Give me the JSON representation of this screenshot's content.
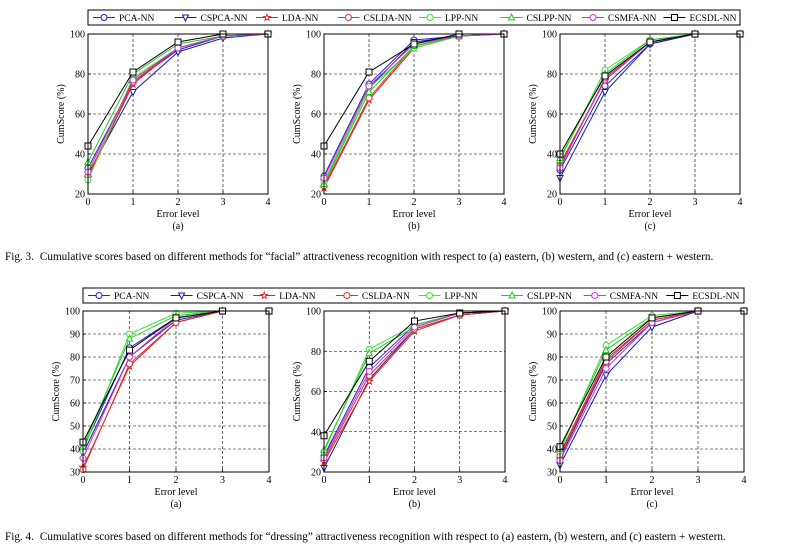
{
  "legend": [
    "PCA-NN",
    "CSPCA-NN",
    "LDA-NN",
    "CSLDA-NN",
    "LPP-NN",
    "CSLPP-NN",
    "CSMFA-NN",
    "ECSDL-NN"
  ],
  "series_colors": [
    "#2222cc",
    "#1a1aa8",
    "#e02020",
    "#d83030",
    "#44dd44",
    "#22cc22",
    "#cc33cc",
    "#000000"
  ],
  "series_markers": [
    "circle",
    "triangle-down",
    "star",
    "circle",
    "circle",
    "triangle-up",
    "circle",
    "square"
  ],
  "figures": [
    {
      "id": "fig3",
      "caption_label": "Fig. 3.",
      "caption_text": "Cumulative scores based on different methods for “facial” attractiveness recognition with respect to (a) eastern, (b) western, and (c) eastern + western."
    },
    {
      "id": "fig4",
      "caption_label": "Fig. 4.",
      "caption_text": "Cumulative scores based on different methods for “dressing” attractiveness recognition with respect to (a) eastern, (b) western, and (c) eastern + western."
    }
  ],
  "chart_data": [
    {
      "figure": "Fig. 3",
      "panel": "(a)",
      "type": "line",
      "xlabel": "Error level",
      "ylabel": "CumScore (%)",
      "x": [
        0,
        1,
        2,
        3,
        4
      ],
      "ylim": [
        20,
        100
      ],
      "yticks": [
        20,
        40,
        60,
        80,
        100
      ],
      "series": [
        {
          "name": "PCA-NN",
          "values": [
            33,
            76,
            92,
            99,
            100
          ]
        },
        {
          "name": "CSPCA-NN",
          "values": [
            30,
            71,
            91,
            98,
            100
          ]
        },
        {
          "name": "LDA-NN",
          "values": [
            28,
            75,
            93,
            99,
            100
          ]
        },
        {
          "name": "CSLDA-NN",
          "values": [
            29,
            76,
            93,
            99,
            100
          ]
        },
        {
          "name": "LPP-NN",
          "values": [
            27,
            78,
            93,
            99,
            100
          ]
        },
        {
          "name": "CSLPP-NN",
          "values": [
            36,
            80,
            95,
            99,
            100
          ]
        },
        {
          "name": "CSMFA-NN",
          "values": [
            31,
            77,
            93,
            99,
            100
          ]
        },
        {
          "name": "ECSDL-NN",
          "values": [
            44,
            81,
            96,
            100,
            100
          ]
        }
      ]
    },
    {
      "figure": "Fig. 3",
      "panel": "(b)",
      "type": "line",
      "xlabel": "Error level",
      "ylabel": "CumScore (%)",
      "x": [
        0,
        1,
        2,
        3,
        4
      ],
      "ylim": [
        20,
        100
      ],
      "yticks": [
        20,
        40,
        60,
        80,
        100
      ],
      "series": [
        {
          "name": "PCA-NN",
          "values": [
            29,
            75,
            97,
            99,
            100
          ]
        },
        {
          "name": "CSPCA-NN",
          "values": [
            26,
            73,
            96,
            99,
            100
          ]
        },
        {
          "name": "LDA-NN",
          "values": [
            23,
            67,
            93,
            99,
            100
          ]
        },
        {
          "name": "CSLDA-NN",
          "values": [
            24,
            68,
            94,
            99,
            100
          ]
        },
        {
          "name": "LPP-NN",
          "values": [
            26,
            73,
            93,
            99,
            100
          ]
        },
        {
          "name": "CSLPP-NN",
          "values": [
            25,
            71,
            94,
            99,
            100
          ]
        },
        {
          "name": "CSMFA-NN",
          "values": [
            28,
            74,
            95,
            99,
            100
          ]
        },
        {
          "name": "ECSDL-NN",
          "values": [
            44,
            81,
            95,
            100,
            100
          ]
        }
      ]
    },
    {
      "figure": "Fig. 3",
      "panel": "(c)",
      "type": "line",
      "xlabel": "Error level",
      "ylabel": "CumScore (%)",
      "x": [
        0,
        1,
        2,
        3,
        4
      ],
      "ylim": [
        20,
        100
      ],
      "yticks": [
        20,
        40,
        60,
        80,
        100
      ],
      "series": [
        {
          "name": "PCA-NN",
          "values": [
            32,
            74,
            95,
            100,
            100
          ]
        },
        {
          "name": "CSPCA-NN",
          "values": [
            28,
            71,
            95,
            100,
            100
          ]
        },
        {
          "name": "LDA-NN",
          "values": [
            35,
            77,
            96,
            100,
            100
          ]
        },
        {
          "name": "CSLDA-NN",
          "values": [
            34,
            77,
            96,
            100,
            100
          ]
        },
        {
          "name": "LPP-NN",
          "values": [
            37,
            82,
            97,
            100,
            100
          ]
        },
        {
          "name": "CSLPP-NN",
          "values": [
            38,
            80,
            97,
            100,
            100
          ]
        },
        {
          "name": "CSMFA-NN",
          "values": [
            33,
            78,
            96,
            100,
            100
          ]
        },
        {
          "name": "ECSDL-NN",
          "values": [
            40,
            79,
            96,
            100,
            100
          ]
        }
      ]
    },
    {
      "figure": "Fig. 4",
      "panel": "(a)",
      "type": "line",
      "xlabel": "Error level",
      "ylabel": "CumScore (%)",
      "x": [
        0,
        1,
        2,
        3,
        4
      ],
      "ylim": [
        30,
        100
      ],
      "yticks": [
        30,
        40,
        50,
        60,
        70,
        80,
        90,
        100
      ],
      "series": [
        {
          "name": "PCA-NN",
          "values": [
            40,
            84,
            97,
            100,
            100
          ]
        },
        {
          "name": "CSPCA-NN",
          "values": [
            38,
            80,
            96,
            100,
            100
          ]
        },
        {
          "name": "LDA-NN",
          "values": [
            32,
            76,
            95,
            100,
            100
          ]
        },
        {
          "name": "CSLDA-NN",
          "values": [
            31,
            77,
            95,
            100,
            100
          ]
        },
        {
          "name": "LPP-NN",
          "values": [
            39,
            90,
            99,
            100,
            100
          ]
        },
        {
          "name": "CSLPP-NN",
          "values": [
            41,
            88,
            98,
            100,
            100
          ]
        },
        {
          "name": "CSMFA-NN",
          "values": [
            36,
            80,
            97,
            100,
            100
          ]
        },
        {
          "name": "ECSDL-NN",
          "values": [
            43,
            83,
            97,
            100,
            100
          ]
        }
      ]
    },
    {
      "figure": "Fig. 4",
      "panel": "(b)",
      "type": "line",
      "xlabel": "Error level",
      "ylabel": "CumScore (%)",
      "x": [
        0,
        1,
        2,
        3,
        4
      ],
      "ylim": [
        20,
        100
      ],
      "yticks": [
        20,
        40,
        60,
        80,
        100
      ],
      "series": [
        {
          "name": "PCA-NN",
          "values": [
            28,
            72,
            93,
            99,
            100
          ]
        },
        {
          "name": "CSPCA-NN",
          "values": [
            22,
            66,
            91,
            98,
            100
          ]
        },
        {
          "name": "LDA-NN",
          "values": [
            25,
            65,
            90,
            98,
            100
          ]
        },
        {
          "name": "CSLDA-NN",
          "values": [
            26,
            68,
            91,
            98,
            100
          ]
        },
        {
          "name": "LPP-NN",
          "values": [
            30,
            81,
            93,
            99,
            100
          ]
        },
        {
          "name": "CSLPP-NN",
          "values": [
            31,
            79,
            92,
            99,
            100
          ]
        },
        {
          "name": "CSMFA-NN",
          "values": [
            27,
            70,
            92,
            99,
            100
          ]
        },
        {
          "name": "ECSDL-NN",
          "values": [
            38,
            75,
            95,
            99,
            100
          ]
        }
      ]
    },
    {
      "figure": "Fig. 4",
      "panel": "(c)",
      "type": "line",
      "xlabel": "Error level",
      "ylabel": "CumScore (%)",
      "x": [
        0,
        1,
        2,
        3,
        4
      ],
      "ylim": [
        30,
        100
      ],
      "yticks": [
        30,
        40,
        50,
        60,
        70,
        80,
        90,
        100
      ],
      "series": [
        {
          "name": "PCA-NN",
          "values": [
            36,
            77,
            95,
            100,
            100
          ]
        },
        {
          "name": "CSPCA-NN",
          "values": [
            33,
            72,
            93,
            100,
            100
          ]
        },
        {
          "name": "LDA-NN",
          "values": [
            38,
            79,
            96,
            100,
            100
          ]
        },
        {
          "name": "CSLDA-NN",
          "values": [
            37,
            78,
            96,
            100,
            100
          ]
        },
        {
          "name": "LPP-NN",
          "values": [
            39,
            85,
            98,
            100,
            100
          ]
        },
        {
          "name": "CSLPP-NN",
          "values": [
            40,
            83,
            97,
            100,
            100
          ]
        },
        {
          "name": "CSMFA-NN",
          "values": [
            35,
            75,
            95,
            100,
            100
          ]
        },
        {
          "name": "ECSDL-NN",
          "values": [
            41,
            80,
            97,
            100,
            100
          ]
        }
      ]
    }
  ]
}
